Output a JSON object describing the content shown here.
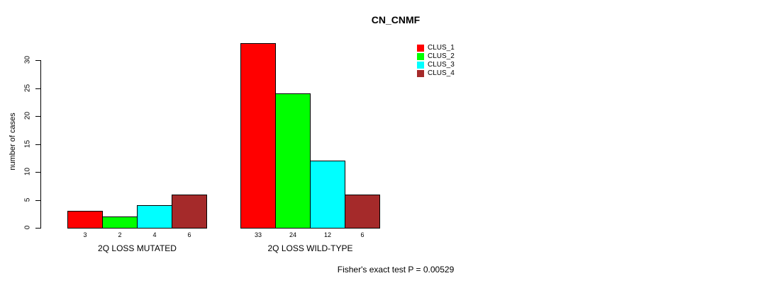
{
  "chart_data": {
    "type": "bar",
    "title": "CN_CNMF",
    "ylabel": "number of cases",
    "xlabel": "",
    "yticks": [
      0,
      5,
      10,
      15,
      20,
      25,
      30
    ],
    "ylim": [
      0,
      33
    ],
    "grid": false,
    "legend_position": "top-right",
    "categories": [
      "2Q LOSS MUTATED",
      "2Q LOSS WILD-TYPE"
    ],
    "series": [
      {
        "name": "CLUS_1",
        "color": "#ff0000",
        "values": [
          3,
          33
        ]
      },
      {
        "name": "CLUS_2",
        "color": "#00ff00",
        "values": [
          2,
          24
        ]
      },
      {
        "name": "CLUS_3",
        "color": "#00ffff",
        "values": [
          4,
          12
        ]
      },
      {
        "name": "CLUS_4",
        "color": "#a52a2a",
        "values": [
          6,
          6
        ]
      }
    ],
    "bar_value_labels": [
      [
        3,
        2,
        4,
        6
      ],
      [
        33,
        24,
        12,
        6
      ]
    ],
    "footer": "Fisher's exact test P = 0.00529",
    "colors": {
      "axis": "#000000",
      "text": "#000000",
      "background": "#ffffff"
    }
  }
}
